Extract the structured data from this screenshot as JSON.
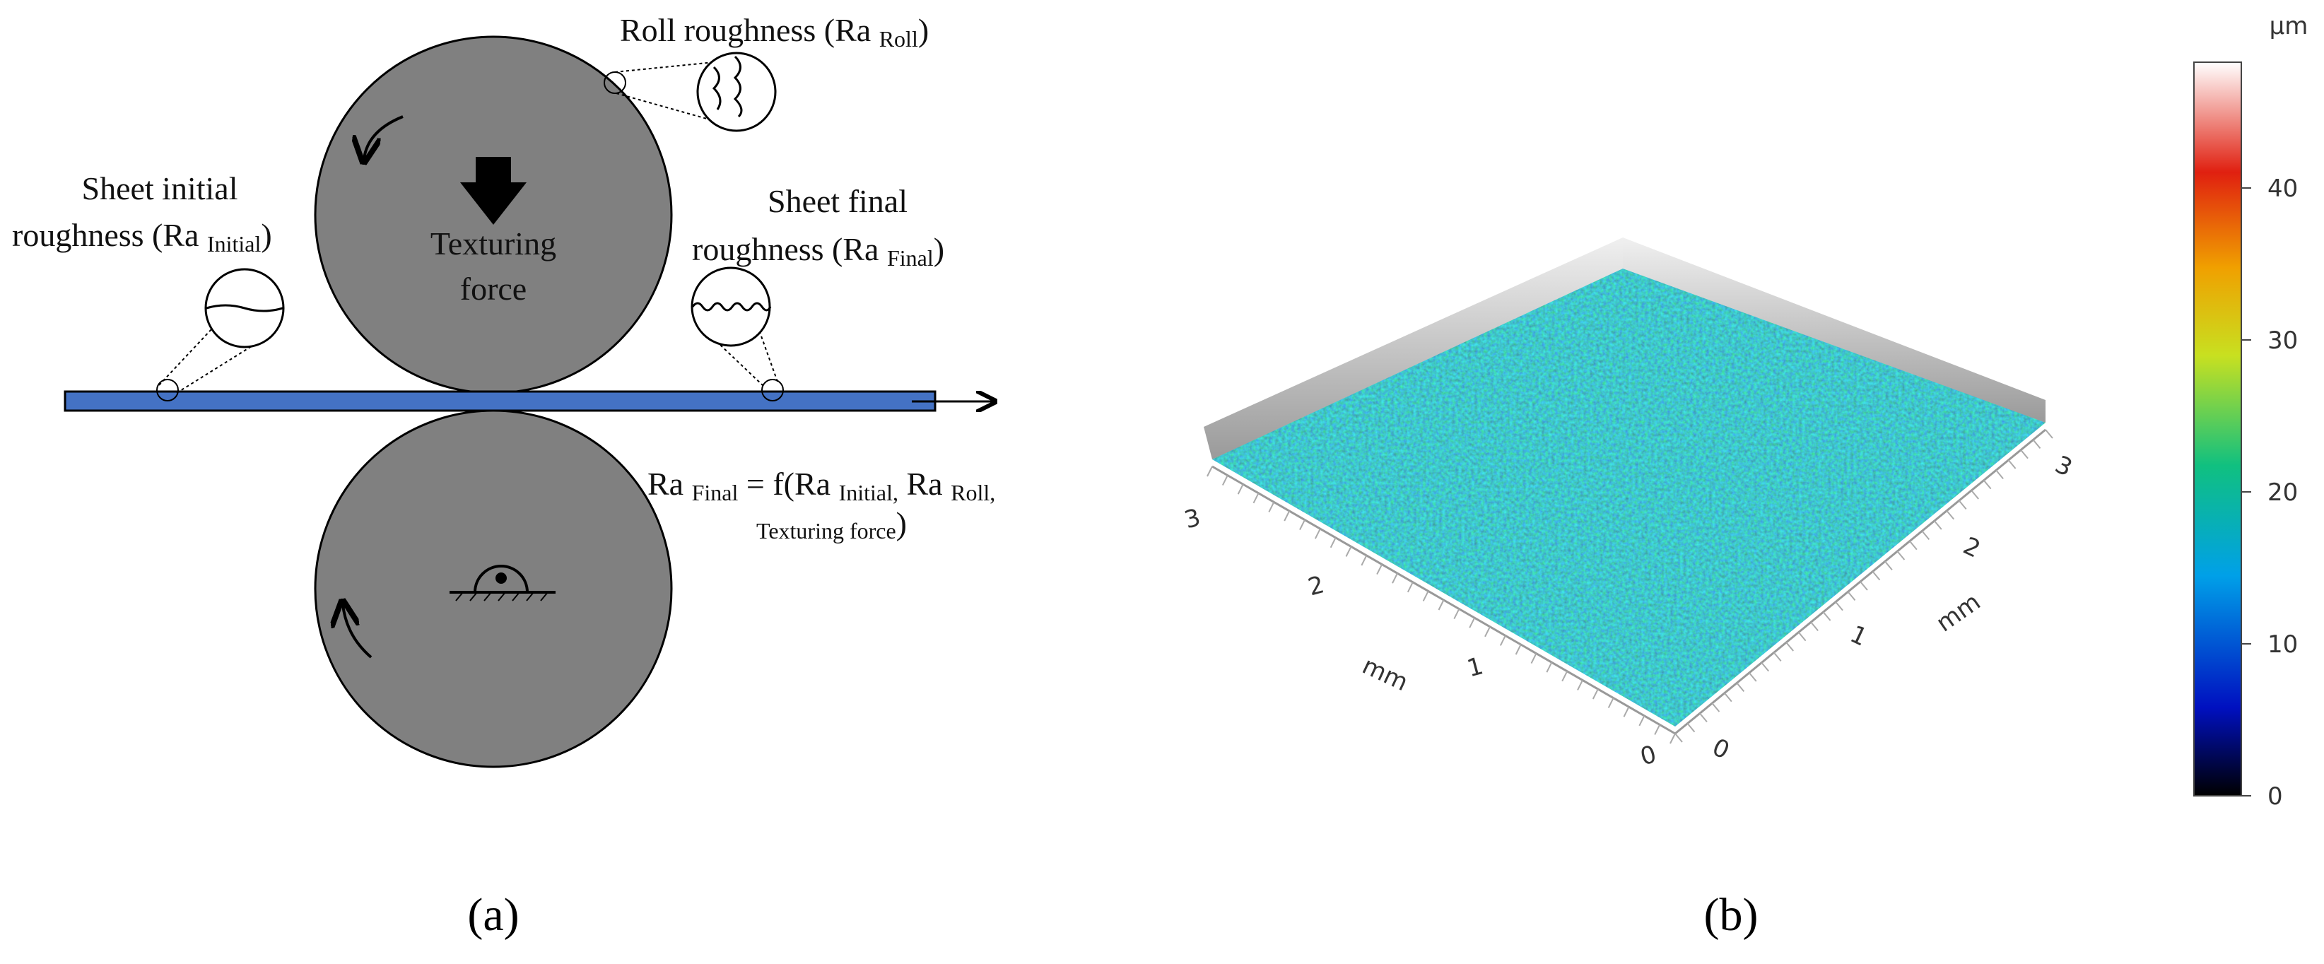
{
  "panel_a": {
    "roll_roughness": [
      "Roll roughness (Ra ",
      "Roll",
      ")"
    ],
    "initial_line1": "Sheet initial",
    "initial_line2": [
      "roughness (Ra ",
      "Initial",
      ")"
    ],
    "final_line1": "Sheet final",
    "final_line2": [
      "roughness (Ra ",
      "Final",
      ")"
    ],
    "force_line1": "Texturing",
    "force_line2": "force",
    "formula_line1": [
      "Ra ",
      "Final",
      " = f(Ra ",
      "Initial,",
      " Ra ",
      "Roll,"
    ],
    "formula_line2": [
      "Texturing force",
      ")"
    ],
    "caption": "(a)"
  },
  "panel_b": {
    "left_axis": {
      "ticks": [
        "3",
        "2",
        "1",
        "0"
      ],
      "unit": "mm"
    },
    "right_axis": {
      "ticks": [
        "0",
        "1",
        "2",
        "3"
      ],
      "unit": "mm"
    },
    "colorbar": {
      "unit": "μm",
      "ticks": [
        0,
        10,
        20,
        30,
        40
      ]
    },
    "caption": "(b)"
  }
}
